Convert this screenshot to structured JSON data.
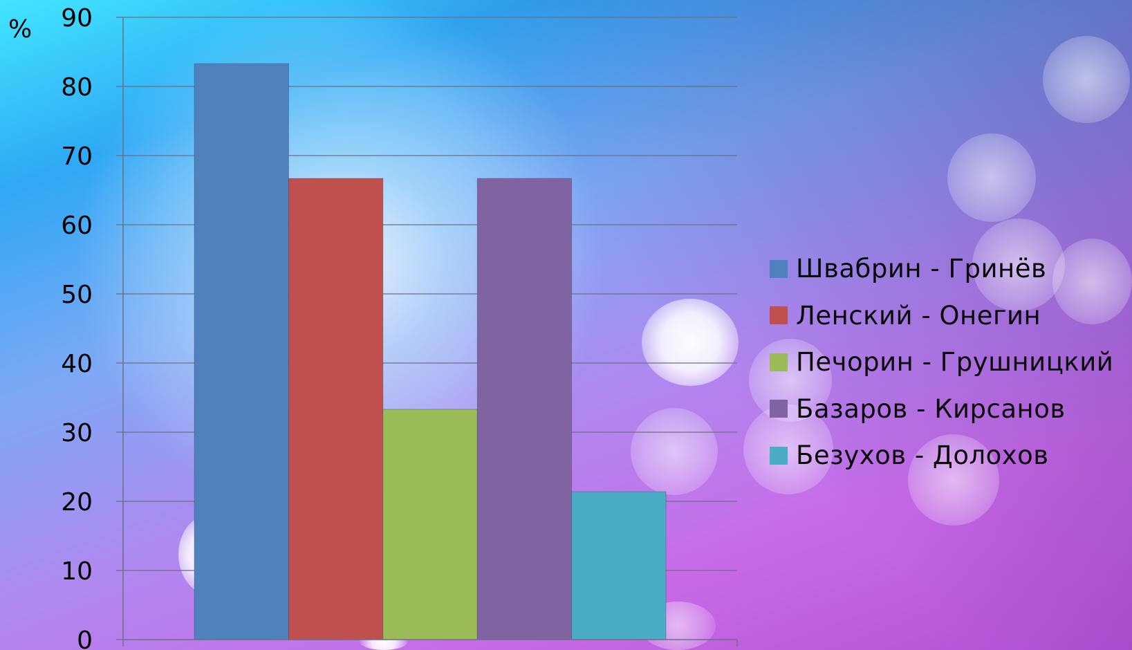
{
  "chart_data": {
    "type": "bar",
    "title": "",
    "xlabel": "",
    "ylabel": "%",
    "ylim": [
      0,
      90
    ],
    "yticks": [
      0,
      10,
      20,
      30,
      40,
      50,
      60,
      70,
      80,
      90
    ],
    "grid": true,
    "legend_position": "right",
    "series": [
      {
        "name": "Швабрин - Гринёв",
        "value": 83.3,
        "color": "#4f81bd"
      },
      {
        "name": "Ленский - Онегин",
        "value": 66.7,
        "color": "#c0504d"
      },
      {
        "name": "Печорин - Грушницкий",
        "value": 33.3,
        "color": "#9bbb59"
      },
      {
        "name": "Базаров - Кирсанов",
        "value": 66.7,
        "color": "#8064a2"
      },
      {
        "name": "Безухов - Долохов",
        "value": 21.4,
        "color": "#4bacc6"
      }
    ]
  },
  "legend": {
    "items": [
      "Швабрин - Гринёв",
      "Ленский - Онегин",
      "Печорин - Грушницкий",
      "Базаров - Кирсанов",
      "Безухов - Долохов"
    ]
  }
}
